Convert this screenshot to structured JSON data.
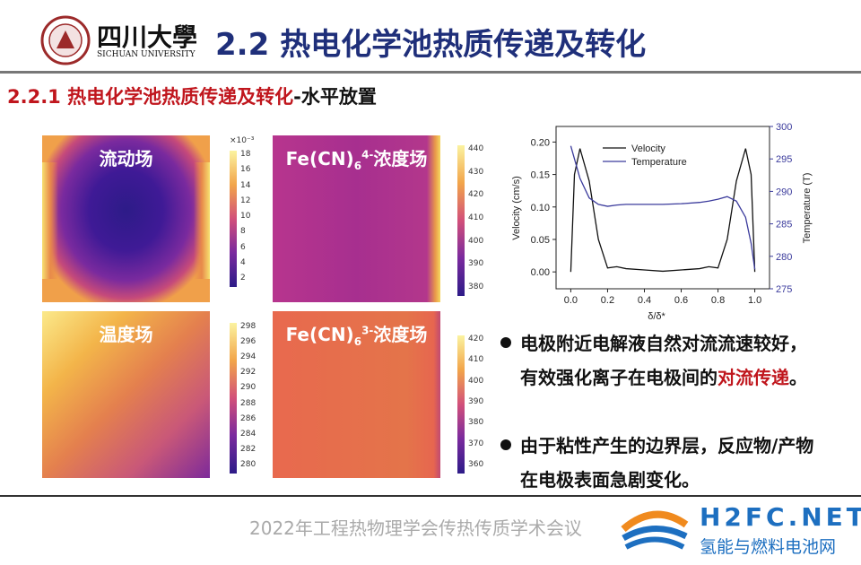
{
  "header": {
    "logo_name": "四川大學",
    "logo_english": "SICHUAN UNIVERSITY",
    "title": "2.2 热电化学池热质传递及转化"
  },
  "section": {
    "title": "2.2.1 热电化学池热质传递及转化",
    "suffix": "-水平放置"
  },
  "panels": [
    {
      "label": {
        "base": "流动场"
      },
      "scale_note": "×10⁻³",
      "colorbar_ticks": [
        18,
        16,
        14,
        12,
        10,
        8,
        6,
        4,
        2
      ]
    },
    {
      "label": {
        "base": "Fe(CN)",
        "subscript": "6",
        "superscript": "4-",
        "suffix": "浓度场"
      },
      "colorbar_ticks": [
        440,
        430,
        420,
        410,
        400,
        390,
        380
      ]
    },
    {
      "label": {
        "base": "温度场"
      },
      "colorbar_ticks": [
        298,
        296,
        294,
        292,
        290,
        288,
        286,
        284,
        282,
        280
      ]
    },
    {
      "label": {
        "base": "Fe(CN)",
        "subscript": "6",
        "superscript": "3-",
        "suffix": "浓度场"
      },
      "colorbar_ticks": [
        420,
        410,
        400,
        390,
        380,
        370,
        360
      ]
    }
  ],
  "chart": {
    "type": "line",
    "x": [
      0,
      0.02,
      0.05,
      0.1,
      0.15,
      0.2,
      0.25,
      0.3,
      0.4,
      0.5,
      0.6,
      0.7,
      0.75,
      0.8,
      0.85,
      0.9,
      0.95,
      0.98,
      1.0
    ],
    "series": [
      {
        "name": "Velocity",
        "color": "#111111",
        "values": [
          0,
          0.15,
          0.19,
          0.14,
          0.05,
          0.006,
          0.008,
          0.005,
          0.003,
          0.001,
          0.003,
          0.005,
          0.008,
          0.006,
          0.05,
          0.14,
          0.19,
          0.15,
          0
        ]
      },
      {
        "name": "Temperature",
        "color": "#3b3b9c",
        "axis": "y2",
        "values": [
          297,
          295,
          292,
          289,
          288,
          287.7,
          287.9,
          288,
          288,
          288,
          288.1,
          288.3,
          288.5,
          288.8,
          289.2,
          288.5,
          286,
          282,
          278
        ]
      }
    ],
    "xlabel": "δ/δ*",
    "ylabel": "Velocity (cm/s)",
    "y2label": "Temperature (T)",
    "xlim": [
      -0.08,
      1.08
    ],
    "xticks": [
      {
        "value": 0,
        "label": "0.0"
      },
      {
        "value": 0.2,
        "label": "0.2"
      },
      {
        "value": 0.4,
        "label": "0.4"
      },
      {
        "value": 0.6,
        "label": "0.6"
      },
      {
        "value": 0.8,
        "label": "0.8"
      },
      {
        "value": 1,
        "label": "1.0"
      }
    ],
    "ylim": [
      -0.026,
      0.224
    ],
    "yticks": [
      {
        "value": 0,
        "label": "0.00"
      },
      {
        "value": 0.05,
        "label": "0.05"
      },
      {
        "value": 0.1,
        "label": "0.10"
      },
      {
        "value": 0.15,
        "label": "0.15"
      },
      {
        "value": 0.2,
        "label": "0.20"
      }
    ],
    "y2lim": [
      275,
      300
    ],
    "y2ticks": [
      275,
      280,
      285,
      290,
      295,
      300
    ],
    "legend": "upper left"
  },
  "bullets": [
    {
      "parts": [
        {
          "text": "电极附近电解液自然对流流速较好，有效强化离子在电极间的"
        },
        {
          "text": "对流传递",
          "highlight": true
        },
        {
          "text": "。"
        }
      ]
    },
    {
      "parts": [
        {
          "text": "由于粘性产生的边界层，反应物/产物在电极表面急剧变化。"
        }
      ]
    }
  ],
  "footer": "2022年工程热物理学会传热传质学术会议",
  "watermark": {
    "brand": "H2FC.NET",
    "tagline": "氢能与燃料电池网"
  }
}
